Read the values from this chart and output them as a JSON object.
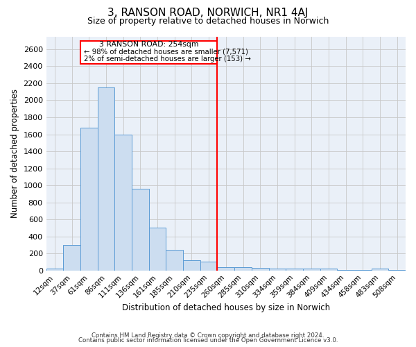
{
  "title": "3, RANSON ROAD, NORWICH, NR1 4AJ",
  "subtitle": "Size of property relative to detached houses in Norwich",
  "xlabel": "Distribution of detached houses by size in Norwich",
  "ylabel": "Number of detached properties",
  "bar_color": "#ccddf0",
  "bar_edge_color": "#5b9bd5",
  "bg_color": "#eaf0f8",
  "grid_color": "#c8c8c8",
  "categories": [
    "12sqm",
    "37sqm",
    "61sqm",
    "86sqm",
    "111sqm",
    "136sqm",
    "161sqm",
    "185sqm",
    "210sqm",
    "235sqm",
    "260sqm",
    "285sqm",
    "310sqm",
    "334sqm",
    "359sqm",
    "384sqm",
    "409sqm",
    "434sqm",
    "458sqm",
    "483sqm",
    "508sqm"
  ],
  "values": [
    20,
    300,
    1680,
    2150,
    1600,
    960,
    500,
    240,
    120,
    100,
    40,
    40,
    30,
    20,
    20,
    20,
    20,
    5,
    5,
    20,
    5
  ],
  "ylim": [
    0,
    2750
  ],
  "yticks": [
    0,
    200,
    400,
    600,
    800,
    1000,
    1200,
    1400,
    1600,
    1800,
    2000,
    2200,
    2400,
    2600
  ],
  "red_line_index": 9.5,
  "annotation_title": "3 RANSON ROAD: 254sqm",
  "annotation_line1": "← 98% of detached houses are smaller (7,571)",
  "annotation_line2": "2% of semi-detached houses are larger (153) →",
  "footnote1": "Contains HM Land Registry data © Crown copyright and database right 2024.",
  "footnote2": "Contains public sector information licensed under the Open Government Licence v3.0."
}
